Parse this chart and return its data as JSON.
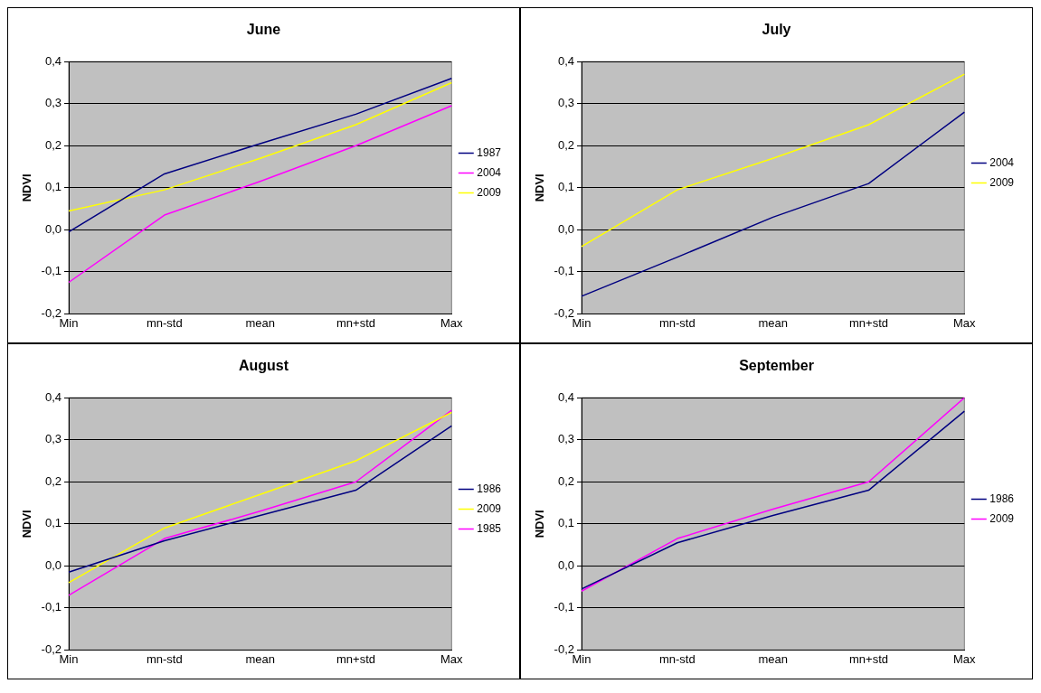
{
  "chart_data": [
    {
      "type": "line",
      "title": "June",
      "ylabel": "NDVI",
      "categories": [
        "Min",
        "mn-std",
        "mean",
        "mn+std",
        "Max"
      ],
      "ylim": [
        -0.2,
        0.4
      ],
      "yticks": [
        {
          "value": -0.2,
          "label": "-0,2"
        },
        {
          "value": -0.1,
          "label": "-0,1"
        },
        {
          "value": 0,
          "label": "0,0"
        },
        {
          "value": 0.1,
          "label": "0,1"
        },
        {
          "value": 0.2,
          "label": "0,2"
        },
        {
          "value": 0.3,
          "label": "0,3"
        },
        {
          "value": 0.4,
          "label": "0,4"
        }
      ],
      "grid": "y",
      "legend": "right",
      "marker": "none",
      "series": [
        {
          "name": "1987",
          "color": "#000080",
          "values": [
            -0.005,
            0.133,
            0.205,
            0.275,
            0.36
          ]
        },
        {
          "name": "2004",
          "color": "#ff00ff",
          "values": [
            -0.125,
            0.035,
            0.115,
            0.2,
            0.295
          ]
        },
        {
          "name": "2009",
          "color": "#ffff00",
          "values": [
            0.045,
            0.095,
            0.17,
            0.25,
            0.35
          ]
        }
      ]
    },
    {
      "type": "line",
      "title": "July",
      "ylabel": "NDVI",
      "categories": [
        "Min",
        "mn-std",
        "mean",
        "mn+std",
        "Max"
      ],
      "ylim": [
        -0.2,
        0.4
      ],
      "yticks": [
        {
          "value": -0.2,
          "label": "-0,2"
        },
        {
          "value": -0.1,
          "label": "-0,1"
        },
        {
          "value": 0,
          "label": "0,0"
        },
        {
          "value": 0.1,
          "label": "0,1"
        },
        {
          "value": 0.2,
          "label": "0,2"
        },
        {
          "value": 0.3,
          "label": "0,3"
        },
        {
          "value": 0.4,
          "label": "0,4"
        }
      ],
      "grid": "y",
      "legend": "right",
      "marker": "none",
      "series": [
        {
          "name": "2004",
          "color": "#000080",
          "values": [
            -0.158,
            -0.065,
            0.03,
            0.11,
            0.28
          ]
        },
        {
          "name": "2009",
          "color": "#ffff00",
          "values": [
            -0.04,
            0.095,
            0.17,
            0.25,
            0.37
          ]
        }
      ]
    },
    {
      "type": "line",
      "title": "August",
      "ylabel": "NDVI",
      "categories": [
        "Min",
        "mn-std",
        "mean",
        "mn+std",
        "Max"
      ],
      "ylim": [
        -0.2,
        0.4
      ],
      "yticks": [
        {
          "value": -0.2,
          "label": "-0,2"
        },
        {
          "value": -0.1,
          "label": "-0,1"
        },
        {
          "value": 0,
          "label": "0,0"
        },
        {
          "value": 0.1,
          "label": "0,1"
        },
        {
          "value": 0.2,
          "label": "0,2"
        },
        {
          "value": 0.3,
          "label": "0,3"
        },
        {
          "value": 0.4,
          "label": "0,4"
        }
      ],
      "grid": "y",
      "legend": "right",
      "marker": "none",
      "series": [
        {
          "name": "1986",
          "color": "#000080",
          "values": [
            -0.015,
            0.06,
            0.12,
            0.18,
            0.333
          ]
        },
        {
          "name": "2009",
          "color": "#ffff00",
          "values": [
            -0.04,
            0.09,
            0.17,
            0.25,
            0.365
          ]
        },
        {
          "name": "1985",
          "color": "#ff00ff",
          "values": [
            -0.07,
            0.065,
            0.13,
            0.2,
            0.37
          ]
        }
      ]
    },
    {
      "type": "line",
      "title": "September",
      "ylabel": "NDVI",
      "categories": [
        "Min",
        "mn-std",
        "mean",
        "mn+std",
        "Max"
      ],
      "ylim": [
        -0.2,
        0.4
      ],
      "yticks": [
        {
          "value": -0.2,
          "label": "-0,2"
        },
        {
          "value": -0.1,
          "label": "-0,1"
        },
        {
          "value": 0,
          "label": "0,0"
        },
        {
          "value": 0.1,
          "label": "0,1"
        },
        {
          "value": 0.2,
          "label": "0,2"
        },
        {
          "value": 0.3,
          "label": "0,3"
        },
        {
          "value": 0.4,
          "label": "0,4"
        }
      ],
      "grid": "y",
      "legend": "right",
      "marker": "none",
      "series": [
        {
          "name": "1986",
          "color": "#000080",
          "values": [
            -0.055,
            0.055,
            0.12,
            0.18,
            0.368
          ]
        },
        {
          "name": "2009",
          "color": "#ff00ff",
          "values": [
            -0.06,
            0.065,
            0.135,
            0.2,
            0.4
          ]
        }
      ]
    }
  ]
}
